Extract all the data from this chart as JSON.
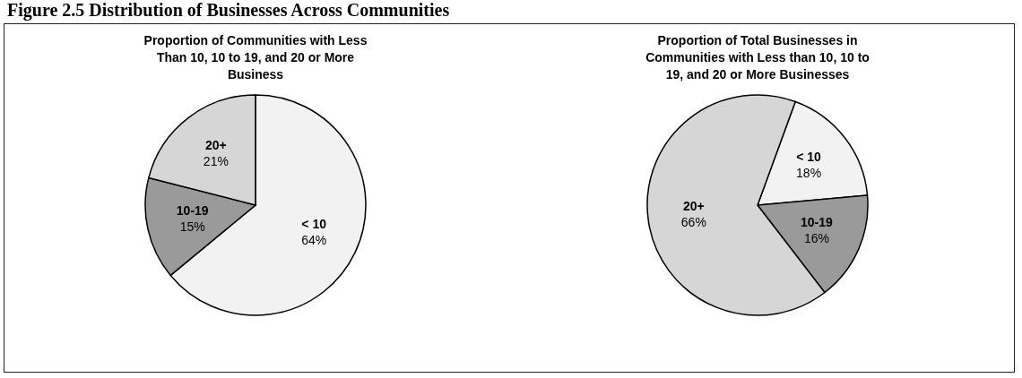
{
  "chart_data": [
    {
      "type": "pie",
      "title": "Proportion of Communities with Less Than 10, 10 to 19, and 20 or More Business",
      "annotations": [
        "Figure 2.5 Distribution of Businesses Across Communities"
      ],
      "categories": [
        "< 10",
        "10-19",
        "20+"
      ],
      "values": [
        64,
        15,
        21
      ],
      "value_labels": [
        "64%",
        "15%",
        "21%"
      ],
      "colors": [
        "#f2f2f2",
        "#9a9a9a",
        "#d6d6d6"
      ]
    },
    {
      "type": "pie",
      "title": "Proportion of Total Businesses in Communities with Less than 10, 10 to 19, and 20 or More Businesses",
      "categories": [
        "< 10",
        "10-19",
        "20+"
      ],
      "values": [
        18,
        16,
        66
      ],
      "value_labels": [
        "18%",
        "16%",
        "66%"
      ],
      "colors": [
        "#f2f2f2",
        "#9a9a9a",
        "#d6d6d6"
      ]
    }
  ]
}
